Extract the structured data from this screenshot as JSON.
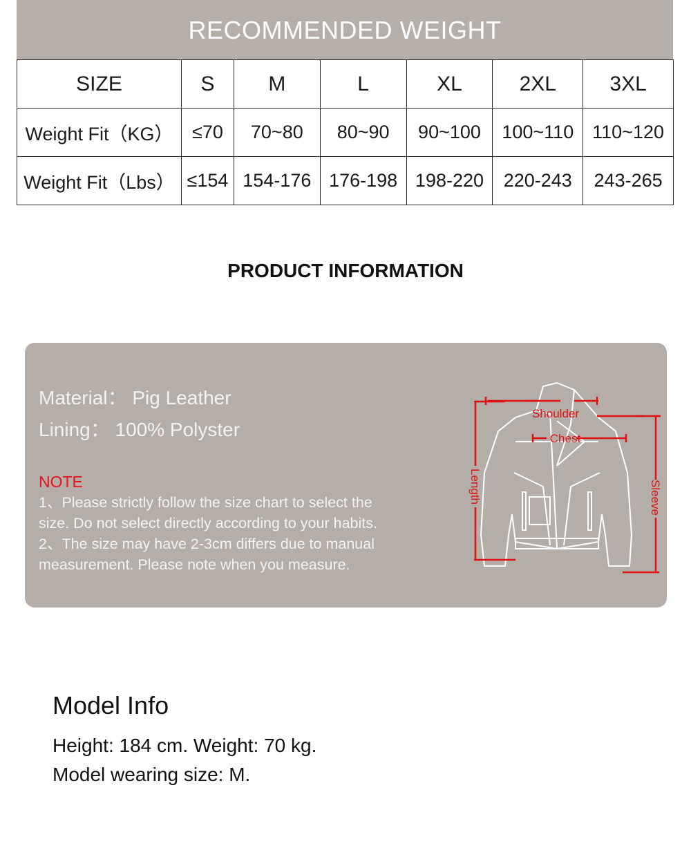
{
  "weight": {
    "title": "RECOMMENDED WEIGHT",
    "header": [
      "SIZE",
      "S",
      "M",
      "L",
      "XL",
      "2XL",
      "3XL"
    ],
    "rows": [
      [
        "Weight Fit（KG）",
        "≤70",
        "70~80",
        "80~90",
        "90~100",
        "100~110",
        "110~120"
      ],
      [
        "Weight Fit（Lbs）",
        "≤154",
        "154-176",
        "176-198",
        "198-220",
        "220-243",
        "243-265"
      ]
    ]
  },
  "product": {
    "title": "PRODUCT INFORMATION",
    "material": "Material： Pig Leather",
    "lining": "Lining： 100% Polyster",
    "note_label": "NOTE",
    "notes": [
      "1、Please strictly follow the size chart to select the",
      "size. Do not select directly according to your habits.",
      "2、The size may have 2-3cm differs due to manual",
      "measurement. Please note when you measure."
    ],
    "diagram": {
      "shoulder": "Shoulder",
      "chest": "Chest",
      "length": "Length",
      "sleeve": "Sleeve"
    },
    "colors": {
      "panel": "#b4ada8",
      "note": "#e8101a",
      "measure": "#e01010"
    }
  },
  "model": {
    "title": "Model Info",
    "line1": "Height: 184 cm.  Weight: 70 kg.",
    "line2": "Model wearing size: M."
  }
}
